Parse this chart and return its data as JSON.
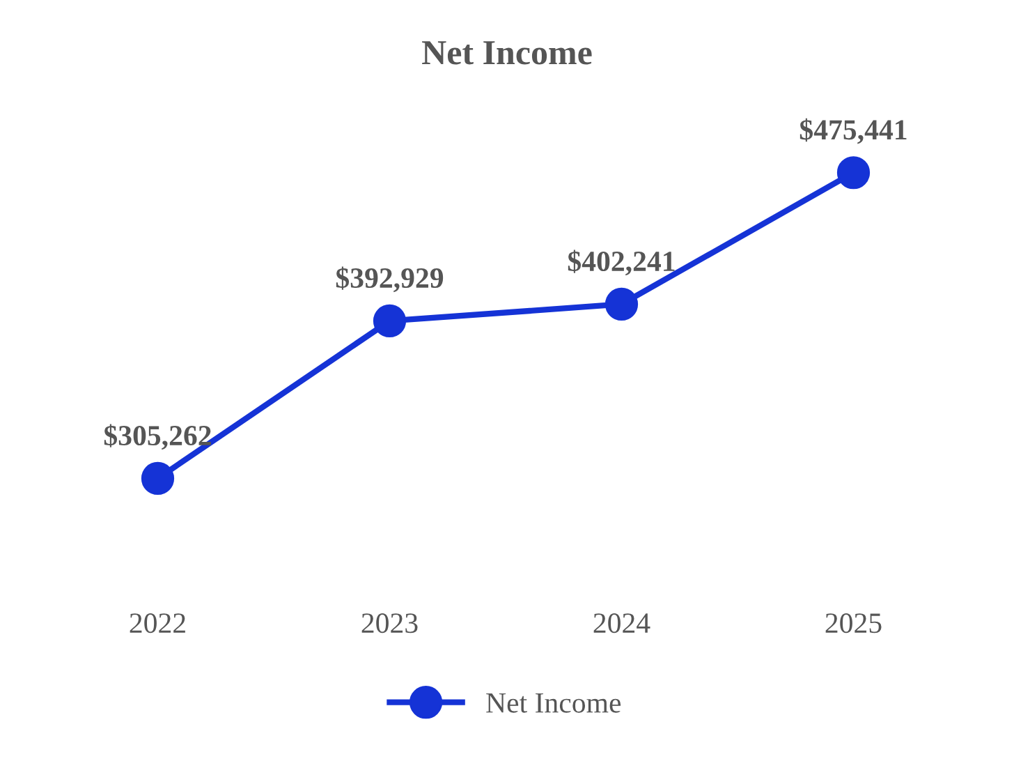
{
  "chart_data": {
    "type": "line",
    "title": "Net Income",
    "categories": [
      "2022",
      "2023",
      "2024",
      "2025"
    ],
    "series": [
      {
        "name": "Net Income",
        "color": "#1533d6",
        "values": [
          305262,
          392929,
          402241,
          475441
        ],
        "value_labels": [
          "$305,262",
          "$392,929",
          "$402,241",
          "$475,441"
        ]
      }
    ],
    "marker": "circle",
    "line_style": "solid",
    "legend": "bottom",
    "grid": false,
    "tick_labels": "x"
  }
}
